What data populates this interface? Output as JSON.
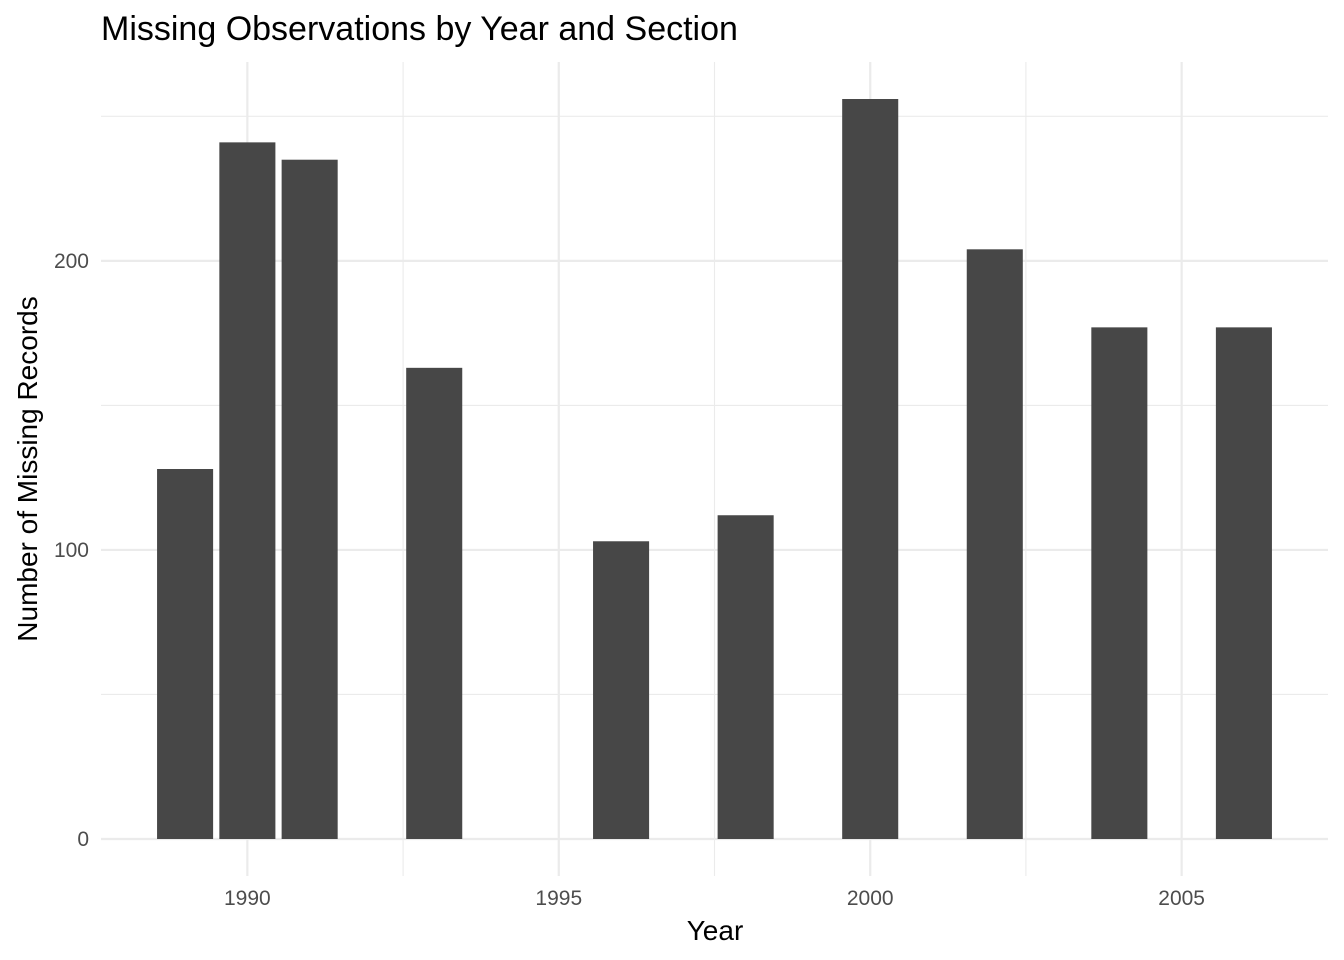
{
  "chart_data": {
    "type": "bar",
    "title": "Missing Observations by Year and Section",
    "xlabel": "Year",
    "ylabel": "Number of Missing Records",
    "x": [
      1989,
      1990,
      1991,
      1993,
      1996,
      1998,
      2000,
      2002,
      2004,
      2006
    ],
    "values": [
      128,
      241,
      235,
      163,
      103,
      112,
      256,
      204,
      177,
      177
    ],
    "xlim": [
      1987.65,
      2007.35
    ],
    "ylim": [
      -12.8,
      268.8
    ],
    "x_ticks": [
      1990,
      1995,
      2000,
      2005
    ],
    "x_tick_labels": [
      "1990",
      "1995",
      "2000",
      "2005"
    ],
    "y_ticks": [
      0,
      100,
      200
    ],
    "y_tick_labels": [
      "0",
      "100",
      "200"
    ],
    "bar_color": "#474747",
    "grid": true,
    "legend": "none"
  }
}
